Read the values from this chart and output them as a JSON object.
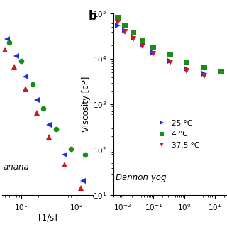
{
  "panel_label": "b",
  "ylabel": "Viscosity [cP]",
  "xlabel_left": "[1/s]",
  "annotation_right": "Dannon yog",
  "annotation_left": "anana",
  "ylim_left": [
    80,
    5000
  ],
  "ylim_right": [
    10,
    100000.0
  ],
  "xlim_left": [
    4.5,
    200
  ],
  "xlim_right": [
    0.005,
    25
  ],
  "bg_color": "#ffffff",
  "left_25C": {
    "x": [
      5.5,
      8.0,
      12,
      19,
      32,
      60,
      130
    ],
    "y": [
      2800,
      1900,
      1200,
      700,
      400,
      200,
      110
    ],
    "color": "#1a2de6",
    "marker": "<"
  },
  "left_4C": {
    "x": [
      6.0,
      10,
      16,
      25,
      42,
      80,
      145
    ],
    "y": [
      2600,
      1700,
      1000,
      580,
      360,
      230,
      200
    ],
    "color": "#1a8c1a",
    "marker": "o"
  },
  "left_375C": {
    "x": [
      5.0,
      7.5,
      12,
      19,
      32,
      60,
      120
    ],
    "y": [
      2200,
      1500,
      900,
      520,
      300,
      160,
      95
    ],
    "color": "#cc1a1a",
    "marker": "^"
  },
  "right_25C": {
    "x": [
      0.007,
      0.012,
      0.022,
      0.045,
      0.1,
      0.35,
      1.2,
      4.5
    ],
    "y": [
      55000,
      42000,
      30000,
      21000,
      14000,
      9000,
      6000,
      4800
    ],
    "color": "#1a2de6",
    "marker": ">"
  },
  "right_4C": {
    "x": [
      0.007,
      0.012,
      0.022,
      0.045,
      0.1,
      0.35,
      1.2,
      4.5,
      16
    ],
    "y": [
      80000,
      55000,
      38000,
      26000,
      18000,
      12500,
      8500,
      6500,
      5200
    ],
    "color": "#1a8c1a",
    "marker": "s"
  },
  "right_375C": {
    "x": [
      0.007,
      0.012,
      0.022,
      0.045,
      0.1,
      0.35,
      1.2,
      4.5
    ],
    "y": [
      62000,
      40000,
      28000,
      19000,
      13000,
      8500,
      5500,
      4200
    ],
    "color": "#cc1a1a",
    "marker": "v"
  },
  "legend_labels": [
    "25 °C",
    "4 °C",
    "37.5 °C"
  ],
  "legend_colors": [
    "#1a2de6",
    "#1a8c1a",
    "#cc1a1a"
  ],
  "legend_markers": [
    ">",
    "s",
    "v"
  ],
  "markersize": 5.5,
  "fontsize_label": 8.5,
  "fontsize_tick": 7.5,
  "fontsize_panel": 12,
  "fontsize_annot": 8.5
}
